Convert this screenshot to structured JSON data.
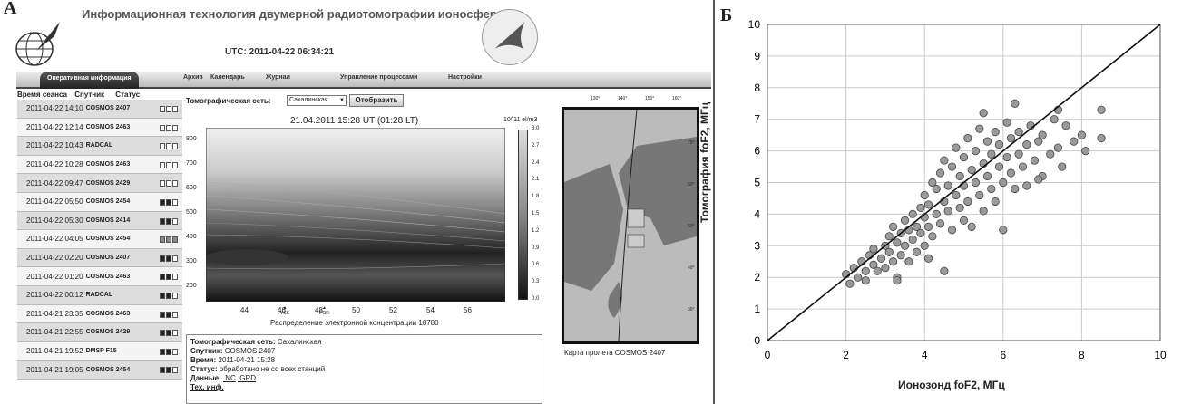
{
  "panel_a": {
    "letter": "А",
    "title": "Информационная технология двумерной радиотомографии ионосферы",
    "utc": "UTC: 2011-04-22 06:34:21",
    "tabs": [
      "Оперативная информация",
      "Архив",
      "Календарь",
      "Журнал",
      "Управление процессами",
      "Настройки"
    ],
    "active_tab": "Оперативная информация",
    "session_headers": {
      "time": "Время сеанса",
      "satellite": "Спутник",
      "status": "Статус"
    },
    "sessions": [
      {
        "time": "2011-04-22 14:10",
        "sat": "COSMOS 2407",
        "status": "ooo"
      },
      {
        "time": "2011-04-22 12:14",
        "sat": "COSMOS 2463",
        "status": "ooo"
      },
      {
        "time": "2011-04-22 10:43",
        "sat": "RADCAL",
        "status": "ooo"
      },
      {
        "time": "2011-04-22 10:28",
        "sat": "COSMOS 2463",
        "status": "ooo"
      },
      {
        "time": "2011-04-22 09:47",
        "sat": "COSMOS 2429",
        "status": "ooo"
      },
      {
        "time": "2011-04-22 05:50",
        "sat": "COSMOS 2454",
        "status": "ffo"
      },
      {
        "time": "2011-04-22 05:30",
        "sat": "COSMOS 2414",
        "status": "ffo"
      },
      {
        "time": "2011-04-22 04:05",
        "sat": "COSMOS 2454",
        "status": "xxx"
      },
      {
        "time": "2011-04-22 02:20",
        "sat": "COSMOS 2407",
        "status": "ffo"
      },
      {
        "time": "2011-04-22 01:20",
        "sat": "COSMOS 2463",
        "status": "ffo"
      },
      {
        "time": "2011-04-22 00:12",
        "sat": "RADCAL",
        "status": "ffo"
      },
      {
        "time": "2011-04-21 23:35",
        "sat": "COSMOS 2463",
        "status": "ffo"
      },
      {
        "time": "2011-04-21 22:55",
        "sat": "COSMOS 2429",
        "status": "ffo"
      },
      {
        "time": "2011-04-21 19:52",
        "sat": "DMSP F15",
        "status": "ffo"
      },
      {
        "time": "2011-04-21 19:05",
        "sat": "COSMOS 2454",
        "status": "ffo"
      }
    ],
    "network_label": "Томографическая сеть:",
    "network_value": "Сахалинская",
    "show_button": "Отобразить",
    "plot_title": "21.04.2011 15:28 UT (01:28 LT)",
    "plot_units": "10^11 el/m3",
    "plot_y_ticks": [
      "800",
      "700",
      "600",
      "500",
      "400",
      "300",
      "200"
    ],
    "plot_x_ticks": [
      "44",
      "46",
      "48",
      "50",
      "52",
      "54",
      "56"
    ],
    "stations": [
      "YSK",
      "POR"
    ],
    "colorbar_ticks": [
      "3.0",
      "2.7",
      "2.4",
      "2.1",
      "1.8",
      "1.5",
      "1.2",
      "0.9",
      "0.6",
      "0.3",
      "0.0"
    ],
    "plot_caption": "Распределение электронной концентрации 18780",
    "map_top_ticks": [
      "130°",
      "140°",
      "150°",
      "160°"
    ],
    "map_side_ticks": [
      "70°",
      "60°",
      "50°",
      "40°",
      "30°"
    ],
    "map_caption": "Карта пролета COSMOS 2407",
    "info": {
      "network_label": "Томографическая сеть:",
      "network_value": "Сахалинская",
      "sat_label": "Спутник:",
      "sat_value": "COSMOS 2407",
      "time_label": "Время:",
      "time_value": "2011-04-21 15:28",
      "status_label": "Статус:",
      "status_value": "обработано не со всех станций",
      "data_label": "Данные:",
      "data_nc": ".NC",
      "data_grd": ".GRD",
      "tech_info": "Тех. инф."
    }
  },
  "panel_b": {
    "letter": "Б"
  },
  "chart_data": {
    "type": "scatter",
    "xlabel": "Ионозонд foF2, МГц",
    "ylabel": "Томография foF2, МГц",
    "xlim": [
      0,
      10
    ],
    "ylim": [
      0,
      10
    ],
    "x_ticks": [
      0,
      2,
      4,
      6,
      8,
      10
    ],
    "y_ticks": [
      0,
      1,
      2,
      3,
      4,
      5,
      6,
      7,
      8,
      9,
      10
    ],
    "grid": true,
    "reference_line": {
      "x": [
        0,
        10
      ],
      "y": [
        0,
        10
      ]
    },
    "marker_color": "#9a9a9a",
    "points": [
      [
        2.0,
        2.1
      ],
      [
        2.1,
        1.8
      ],
      [
        2.2,
        2.3
      ],
      [
        2.3,
        2.0
      ],
      [
        2.4,
        2.5
      ],
      [
        2.5,
        2.2
      ],
      [
        2.5,
        1.9
      ],
      [
        2.6,
        2.7
      ],
      [
        2.7,
        2.4
      ],
      [
        2.7,
        2.9
      ],
      [
        2.8,
        2.2
      ],
      [
        2.9,
        2.6
      ],
      [
        3.0,
        3.0
      ],
      [
        3.0,
        2.3
      ],
      [
        3.1,
        2.8
      ],
      [
        3.1,
        3.3
      ],
      [
        3.2,
        2.5
      ],
      [
        3.2,
        3.6
      ],
      [
        3.3,
        3.1
      ],
      [
        3.3,
        2.0
      ],
      [
        3.4,
        3.4
      ],
      [
        3.4,
        2.7
      ],
      [
        3.5,
        3.8
      ],
      [
        3.5,
        3.0
      ],
      [
        3.6,
        2.5
      ],
      [
        3.6,
        3.5
      ],
      [
        3.7,
        4.0
      ],
      [
        3.7,
        3.2
      ],
      [
        3.8,
        3.6
      ],
      [
        3.8,
        2.8
      ],
      [
        3.9,
        4.2
      ],
      [
        3.9,
        3.4
      ],
      [
        4.0,
        3.9
      ],
      [
        4.0,
        4.6
      ],
      [
        4.0,
        3.0
      ],
      [
        4.1,
        3.6
      ],
      [
        4.1,
        4.3
      ],
      [
        4.2,
        5.0
      ],
      [
        4.2,
        3.3
      ],
      [
        4.3,
        4.0
      ],
      [
        4.3,
        4.8
      ],
      [
        4.4,
        3.7
      ],
      [
        4.4,
        5.3
      ],
      [
        4.5,
        4.4
      ],
      [
        4.5,
        2.2
      ],
      [
        4.5,
        5.7
      ],
      [
        4.6,
        4.1
      ],
      [
        4.6,
        4.9
      ],
      [
        4.7,
        3.5
      ],
      [
        4.7,
        5.5
      ],
      [
        4.8,
        4.6
      ],
      [
        4.8,
        6.1
      ],
      [
        4.9,
        4.2
      ],
      [
        4.9,
        5.2
      ],
      [
        5.0,
        3.8
      ],
      [
        5.0,
        5.8
      ],
      [
        5.0,
        4.9
      ],
      [
        5.1,
        4.4
      ],
      [
        5.1,
        6.4
      ],
      [
        5.2,
        5.4
      ],
      [
        5.2,
        3.6
      ],
      [
        5.3,
        5.0
      ],
      [
        5.3,
        6.0
      ],
      [
        5.4,
        4.6
      ],
      [
        5.4,
        6.7
      ],
      [
        5.5,
        5.6
      ],
      [
        5.5,
        4.1
      ],
      [
        5.6,
        5.2
      ],
      [
        5.6,
        6.3
      ],
      [
        5.7,
        4.8
      ],
      [
        5.7,
        5.9
      ],
      [
        5.8,
        6.6
      ],
      [
        5.8,
        4.4
      ],
      [
        5.9,
        5.5
      ],
      [
        5.9,
        6.2
      ],
      [
        6.0,
        5.0
      ],
      [
        6.0,
        3.5
      ],
      [
        6.1,
        5.8
      ],
      [
        6.1,
        6.9
      ],
      [
        6.2,
        5.3
      ],
      [
        6.2,
        6.4
      ],
      [
        6.3,
        4.8
      ],
      [
        6.3,
        7.5
      ],
      [
        6.4,
        5.9
      ],
      [
        6.4,
        6.6
      ],
      [
        6.5,
        5.5
      ],
      [
        6.6,
        6.2
      ],
      [
        6.6,
        4.9
      ],
      [
        6.7,
        6.8
      ],
      [
        6.8,
        5.7
      ],
      [
        6.9,
        6.3
      ],
      [
        7.0,
        5.2
      ],
      [
        7.0,
        6.5
      ],
      [
        7.2,
        5.9
      ],
      [
        7.3,
        7.0
      ],
      [
        7.4,
        6.1
      ],
      [
        7.5,
        5.5
      ],
      [
        7.6,
        6.8
      ],
      [
        7.8,
        6.3
      ],
      [
        8.0,
        6.5
      ],
      [
        8.1,
        6.0
      ],
      [
        8.5,
        7.3
      ],
      [
        8.5,
        6.4
      ],
      [
        7.4,
        7.3
      ],
      [
        6.9,
        5.1
      ],
      [
        3.3,
        1.9
      ],
      [
        4.1,
        2.6
      ],
      [
        5.5,
        7.2
      ]
    ]
  }
}
